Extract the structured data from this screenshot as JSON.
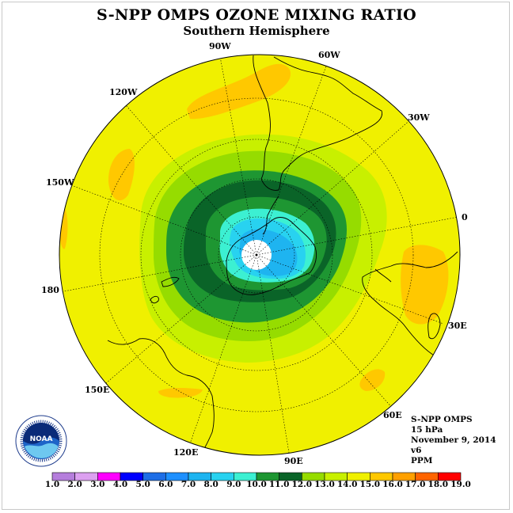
{
  "title": "S-NPP OMPS OZONE MIXING RATIO",
  "subtitle": "Southern Hemisphere",
  "longitude_labels": [
    "90W",
    "60W",
    "30W",
    "120W",
    "150W",
    "0",
    "180",
    "30E",
    "150E",
    "60E",
    "120E",
    "90E"
  ],
  "info": {
    "instrument": "S-NPP OMPS",
    "pressure": "15 hPa",
    "date": "November 9, 2014",
    "version": "v6",
    "units": "PPM"
  },
  "logo": {
    "text": "NOAA",
    "ring_text": "NATIONAL OCEANIC AND ATMOSPHERIC ADMINISTRATION · U.S. DEPARTMENT OF COMMERCE"
  },
  "colorbar": {
    "labels": [
      "1.0",
      "2.0",
      "3.0",
      "4.0",
      "5.0",
      "6.0",
      "7.0",
      "8.0",
      "9.0",
      "10.0",
      "11.0",
      "12.0",
      "13.0",
      "14.0",
      "15.0",
      "16.0",
      "17.0",
      "18.0",
      "19.0"
    ],
    "colors": [
      "#b57edc",
      "#dca0f0",
      "#ff00ff",
      "#0000ff",
      "#1e6ee6",
      "#1e90ff",
      "#1eb4f0",
      "#28d2f0",
      "#3cf0d2",
      "#1e9632",
      "#0a6428",
      "#96dc00",
      "#c8f000",
      "#f0f000",
      "#ffc800",
      "#ffa000",
      "#ff6400",
      "#ff0000",
      "#8b5a2b"
    ]
  },
  "map_colors": {
    "background": "#f0f000",
    "band_14_15": "#ffc800",
    "band_13_14": "#c8f000",
    "band_12_13": "#96dc00",
    "band_11_12": "#1e9632",
    "band_10_11": "#0a6428",
    "band_9_10": "#1e9632",
    "band_8_9": "#3cf0d2",
    "band_7_8": "#28d2f0",
    "band_6_7": "#1eb4f0",
    "pole": "#ffffff"
  }
}
